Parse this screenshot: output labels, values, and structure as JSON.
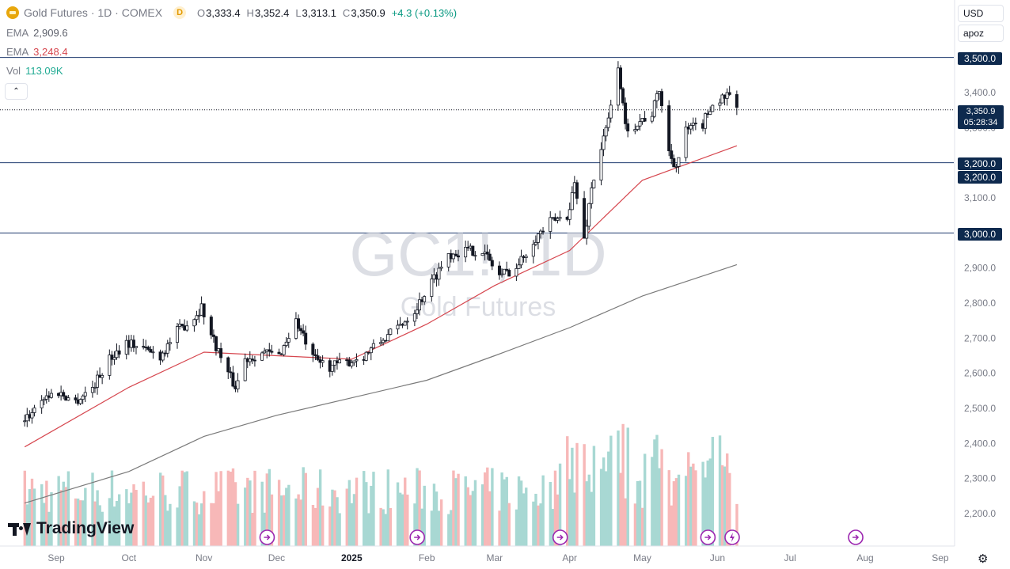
{
  "header": {
    "title": "Gold Futures · 1D · COMEX",
    "interval_badge": "D",
    "ohlc": {
      "o_label": "O",
      "o": "3,333.4",
      "h_label": "H",
      "h": "3,352.4",
      "l_label": "L",
      "l": "3,313.1",
      "c_label": "C",
      "c": "3,350.9",
      "change": "+4.3 (+0.13%)"
    }
  },
  "indicators": {
    "ema1_label": "EMA",
    "ema1_value": "2,909.6",
    "ema2_label": "EMA",
    "ema2_value": "3,248.4",
    "vol_label": "Vol",
    "vol_value": "113.09K"
  },
  "controls": {
    "currency": "USD",
    "scale": "apoz",
    "collapse_glyph": "⌃"
  },
  "price_tags": {
    "t3500": "3,500.0",
    "t3200a": "3,200.0",
    "t3200b": "3,200.0",
    "t3000": "3,000.0",
    "current_price": "3,350.9",
    "countdown": "05:28:34"
  },
  "watermark": {
    "symbol": "GC1!, 1D",
    "name": "Gold Futures"
  },
  "brand": {
    "name": "TradingView"
  },
  "colors": {
    "up": "#089981",
    "down": "#f23645",
    "ema_fast": "#d6474f",
    "ema_slow": "#7a7a7a",
    "level_line": "#1e3a6e",
    "vol_up": "#a8d8d3",
    "vol_down": "#f7b8b8",
    "tag_bg": "#0e2a4e"
  },
  "chart_data": {
    "type": "candlestick",
    "title": "Gold Futures · 1D · COMEX",
    "y_axis": {
      "ticks": [
        2200,
        2300,
        2400,
        2500,
        2600,
        2700,
        2800,
        2900,
        3000,
        3100,
        3200,
        3300,
        3400
      ],
      "tick_labels": [
        "2,200.0",
        "2,300.0",
        "2,400.0",
        "2,500.0",
        "2,600.0",
        "2,700.0",
        "2,800.0",
        "2,900.0",
        "3,000.0",
        "3,100.0",
        "3,200.0",
        "3,300.0",
        "3,400.0"
      ],
      "ylim": [
        2180,
        3520
      ]
    },
    "x_axis": {
      "tick_labels": [
        "Sep",
        "Oct",
        "Nov",
        "Dec",
        "2025",
        "Feb",
        "Mar",
        "Apr",
        "May",
        "Jun",
        "Jul",
        "Aug",
        "Sep"
      ],
      "tick_dates": [
        "2024-09-01",
        "2024-10-01",
        "2024-11-01",
        "2024-12-01",
        "2025-01-01",
        "2025-02-01",
        "2025-03-01",
        "2025-04-01",
        "2025-05-01",
        "2025-06-01",
        "2025-07-01",
        "2025-08-01",
        "2025-09-01"
      ]
    },
    "horizontal_levels": [
      3500,
      3200,
      3000
    ],
    "current_price": 3350.9,
    "close_series": {
      "name": "Close",
      "points": [
        [
          "2024-08-19",
          2462
        ],
        [
          "2024-08-26",
          2530
        ],
        [
          "2024-09-02",
          2545
        ],
        [
          "2024-09-09",
          2520
        ],
        [
          "2024-09-16",
          2560
        ],
        [
          "2024-09-23",
          2640
        ],
        [
          "2024-09-30",
          2690
        ],
        [
          "2024-10-07",
          2670
        ],
        [
          "2024-10-14",
          2650
        ],
        [
          "2024-10-21",
          2720
        ],
        [
          "2024-10-28",
          2760
        ],
        [
          "2024-10-31",
          2790
        ],
        [
          "2024-11-04",
          2710
        ],
        [
          "2024-11-11",
          2600
        ],
        [
          "2024-11-14",
          2560
        ],
        [
          "2024-11-18",
          2640
        ],
        [
          "2024-11-25",
          2660
        ],
        [
          "2024-12-02",
          2650
        ],
        [
          "2024-12-09",
          2750
        ],
        [
          "2024-12-16",
          2640
        ],
        [
          "2024-12-23",
          2620
        ],
        [
          "2024-12-30",
          2630
        ],
        [
          "2025-01-06",
          2650
        ],
        [
          "2025-01-13",
          2690
        ],
        [
          "2025-01-20",
          2730
        ],
        [
          "2025-01-27",
          2780
        ],
        [
          "2025-02-03",
          2860
        ],
        [
          "2025-02-10",
          2940
        ],
        [
          "2025-02-17",
          2950
        ],
        [
          "2025-02-24",
          2950
        ],
        [
          "2025-03-03",
          2880
        ],
        [
          "2025-03-10",
          2900
        ],
        [
          "2025-03-17",
          2980
        ],
        [
          "2025-03-24",
          3030
        ],
        [
          "2025-03-31",
          3050
        ],
        [
          "2025-04-03",
          3140
        ],
        [
          "2025-04-07",
          2980
        ],
        [
          "2025-04-10",
          3130
        ],
        [
          "2025-04-14",
          3240
        ],
        [
          "2025-04-17",
          3320
        ],
        [
          "2025-04-21",
          3480
        ],
        [
          "2025-04-24",
          3300
        ],
        [
          "2025-04-28",
          3310
        ],
        [
          "2025-05-05",
          3340
        ],
        [
          "2025-05-08",
          3410
        ],
        [
          "2025-05-12",
          3230
        ],
        [
          "2025-05-15",
          3190
        ],
        [
          "2025-05-19",
          3290
        ],
        [
          "2025-05-22",
          3300
        ],
        [
          "2025-05-26",
          3310
        ],
        [
          "2025-05-29",
          3360
        ],
        [
          "2025-06-02",
          3380
        ],
        [
          "2025-06-05",
          3390
        ],
        [
          "2025-06-09",
          3350.9
        ]
      ]
    },
    "ema_series": [
      {
        "name": "EMA",
        "value_label": "3,248.4",
        "points": [
          [
            "2024-08-19",
            2390
          ],
          [
            "2024-10-01",
            2560
          ],
          [
            "2024-11-01",
            2660
          ],
          [
            "2024-12-01",
            2650
          ],
          [
            "2025-01-01",
            2640
          ],
          [
            "2025-02-01",
            2740
          ],
          [
            "2025-03-01",
            2850
          ],
          [
            "2025-04-01",
            2950
          ],
          [
            "2025-05-01",
            3150
          ],
          [
            "2025-06-09",
            3248.4
          ]
        ]
      },
      {
        "name": "EMA",
        "value_label": "2,909.6",
        "points": [
          [
            "2024-08-19",
            2230
          ],
          [
            "2024-10-01",
            2320
          ],
          [
            "2024-11-01",
            2420
          ],
          [
            "2024-12-01",
            2480
          ],
          [
            "2025-01-01",
            2530
          ],
          [
            "2025-02-01",
            2580
          ],
          [
            "2025-03-01",
            2650
          ],
          [
            "2025-04-01",
            2730
          ],
          [
            "2025-05-01",
            2820
          ],
          [
            "2025-06-09",
            2909.6
          ]
        ]
      }
    ],
    "volume": {
      "last": "113.09K"
    },
    "legend_position": "top-left",
    "grid": false
  }
}
